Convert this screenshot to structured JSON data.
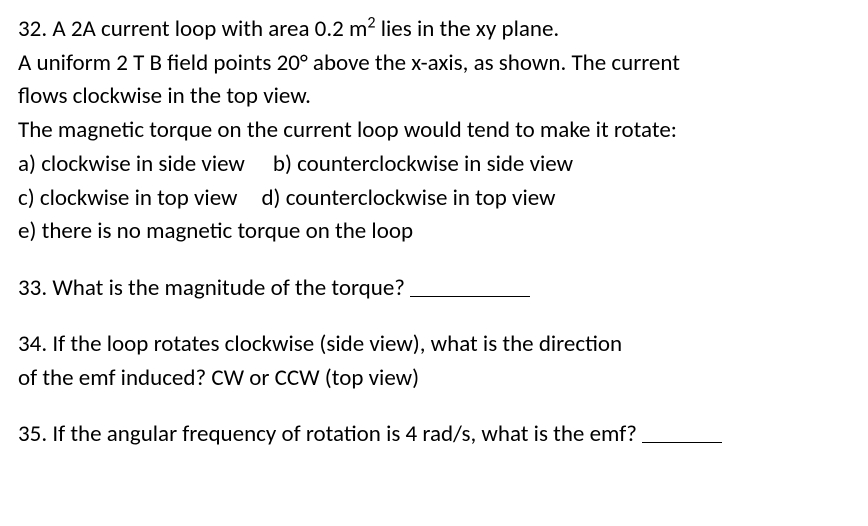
{
  "font": {
    "family": "Calibri, Arial, sans-serif",
    "size_pt": 17,
    "color": "#000000",
    "weight": "normal"
  },
  "background_color": "#ffffff",
  "q32": {
    "line1_pre": "32. A 2A current loop with area 0.2 m",
    "line1_sup": "2",
    "line1_post": " lies in the xy plane.",
    "line2": "A uniform 2 T B field points 20° above the x-axis, as shown. The current",
    "line3": "flows clockwise in the top view.",
    "line4": "The magnetic torque on the current loop would tend to make it rotate:",
    "opt_a": "a) clockwise in side view",
    "opt_b": "b) counterclockwise in side view",
    "opt_c": "c) clockwise in top view",
    "opt_d": "d) counterclockwise in top view",
    "opt_e": "e) there is no magnetic torque on the loop"
  },
  "q33": {
    "text": "33. What is the magnitude of the torque? "
  },
  "q34": {
    "line1": "34. If the loop rotates clockwise (side view), what is the direction",
    "line2": "of the emf induced?  CW or CCW (top view)"
  },
  "q35": {
    "text": "35. If the angular frequency of rotation is 4 rad/s, what is the emf? "
  }
}
